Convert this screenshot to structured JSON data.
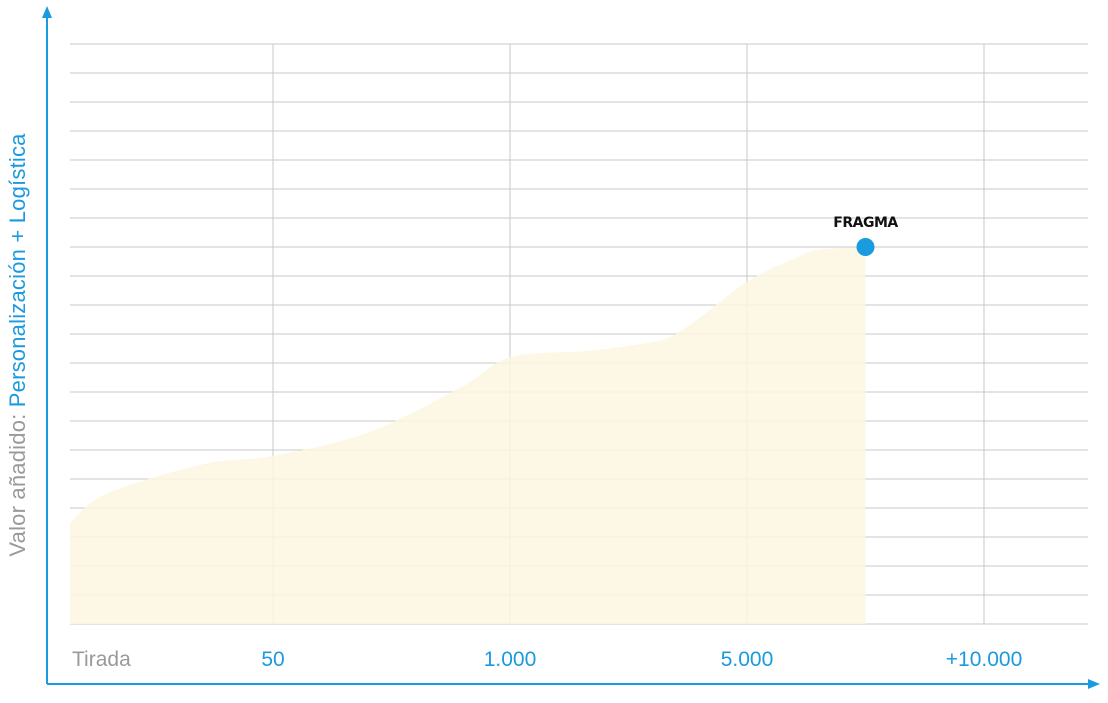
{
  "chart_data": {
    "type": "area",
    "y_label_prefix": "Valor añadido:",
    "y_label_main": "Personalización + Logística",
    "x_label": "Tirada",
    "x_ticks": [
      "50",
      "1.000",
      "5.000",
      "+10.000"
    ],
    "grid": true,
    "ylim": [
      0,
      20
    ],
    "series": [
      {
        "x": [
          0,
          0.3,
          0.7,
          1.0,
          1.4,
          1.8,
          2.0,
          2.3,
          2.5,
          2.7,
          3.0,
          3.2,
          3.3,
          3.5
        ],
        "y": [
          3.5,
          4.5,
          5.5,
          5.8,
          6.6,
          8.2,
          9.2,
          9.4,
          9.6,
          10.0,
          11.8,
          12.6,
          12.9,
          13.0
        ],
        "marker_label": "FRAGMA"
      }
    ],
    "colors": {
      "fill": "#fcf7e1",
      "accent": "#1a9be0",
      "grid": "#c9c9c9",
      "muted": "#9a9a9a"
    }
  }
}
